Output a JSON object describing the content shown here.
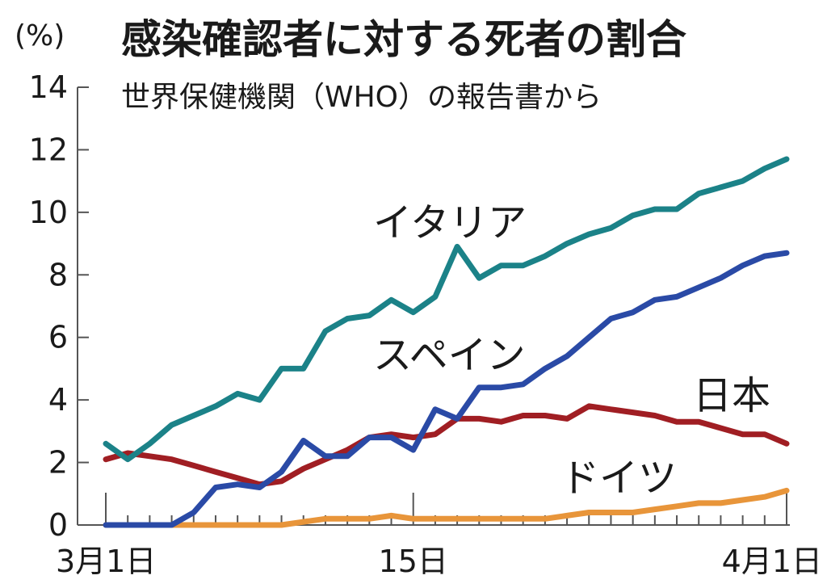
{
  "chart_data": {
    "type": "line",
    "title": "感染確認者に対する死者の割合",
    "subtitle": "世界保健機関（WHO）の報告書から",
    "y_unit": "(%)",
    "ylim": [
      0,
      14
    ],
    "yticks": [
      0,
      2,
      4,
      6,
      8,
      10,
      12,
      14
    ],
    "xlim": [
      1,
      32
    ],
    "xtick_values": [
      1,
      15,
      32
    ],
    "xtick_labels": [
      "3月1日",
      "15日",
      "4月1日"
    ],
    "grid": false,
    "legend": "direct-labels",
    "series": [
      {
        "name": "イタリア",
        "color": "#1b8288",
        "values": [
          2.6,
          2.1,
          2.6,
          3.2,
          3.5,
          3.8,
          4.2,
          4.0,
          5.0,
          5.0,
          6.2,
          6.6,
          6.7,
          7.2,
          6.8,
          7.3,
          8.9,
          7.9,
          8.3,
          8.3,
          8.6,
          9.0,
          9.3,
          9.5,
          9.9,
          10.1,
          10.1,
          10.6,
          10.8,
          11.0,
          11.4,
          11.7
        ]
      },
      {
        "name": "スペイン",
        "color": "#2a4aa6",
        "values": [
          0.0,
          0.0,
          0.0,
          0.0,
          0.4,
          1.2,
          1.3,
          1.2,
          1.7,
          2.7,
          2.2,
          2.2,
          2.8,
          2.8,
          2.4,
          3.7,
          3.4,
          4.4,
          4.4,
          4.5,
          5.0,
          5.4,
          6.0,
          6.6,
          6.8,
          7.2,
          7.3,
          7.6,
          7.9,
          8.3,
          8.6,
          8.7
        ]
      },
      {
        "name": "日本",
        "color": "#a01e23",
        "values": [
          2.1,
          2.3,
          2.2,
          2.1,
          1.9,
          1.7,
          1.5,
          1.3,
          1.4,
          1.8,
          2.1,
          2.4,
          2.8,
          2.9,
          2.8,
          2.9,
          3.4,
          3.4,
          3.3,
          3.5,
          3.5,
          3.4,
          3.8,
          3.7,
          3.6,
          3.5,
          3.3,
          3.3,
          3.1,
          2.9,
          2.9,
          2.6
        ]
      },
      {
        "name": "ドイツ",
        "color": "#e8953a",
        "values": [
          0.0,
          0.0,
          0.0,
          0.0,
          0.0,
          0.0,
          0.0,
          0.0,
          0.0,
          0.1,
          0.2,
          0.2,
          0.2,
          0.3,
          0.2,
          0.2,
          0.2,
          0.2,
          0.2,
          0.2,
          0.2,
          0.3,
          0.4,
          0.4,
          0.4,
          0.5,
          0.6,
          0.7,
          0.7,
          0.8,
          0.9,
          1.1
        ]
      }
    ]
  }
}
